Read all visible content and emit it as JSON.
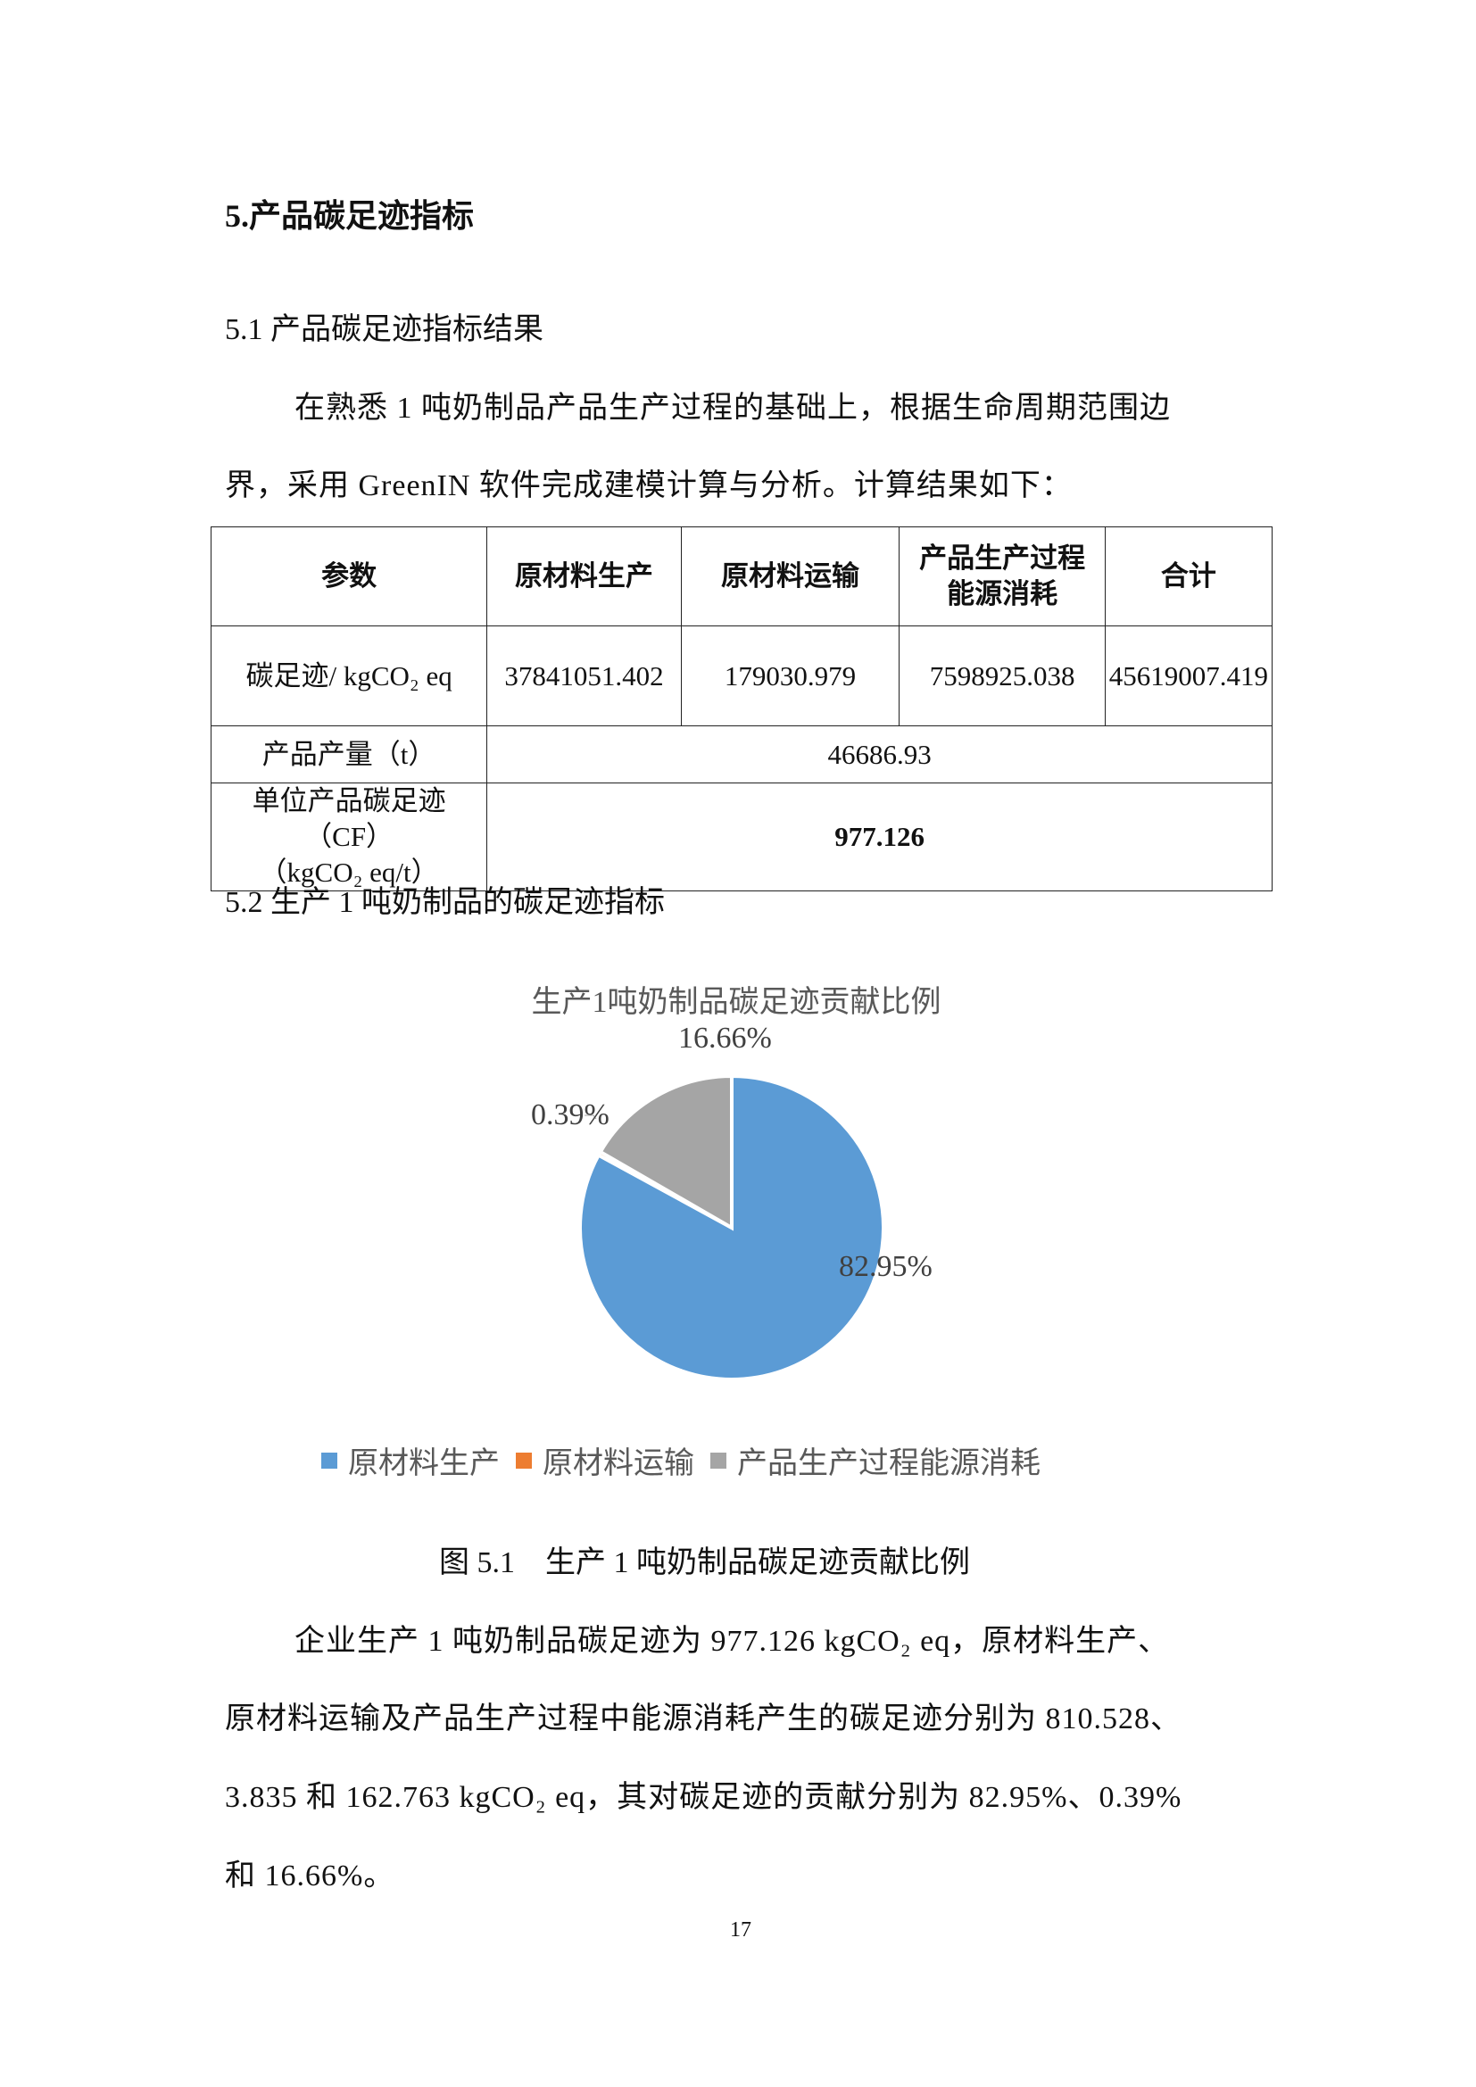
{
  "heading": "5.产品碳足迹指标",
  "section_5_1": "5.1 产品碳足迹指标结果",
  "intro_lines": [
    "在熟悉 1 吨奶制品产品生产过程的基础上，根据生命周期范围边",
    "界，采用 GreenIN 软件完成建模计算与分析。计算结果如下："
  ],
  "table": {
    "headers": [
      "参数",
      "原材料生产",
      "原材料运输",
      "产品生产过程能源消耗",
      "合计"
    ],
    "row_cf": {
      "label": "碳足迹/ kgCO₂ eq",
      "values": [
        "37841051.402",
        "179030.979",
        "7598925.038",
        "45619007.419"
      ]
    },
    "row_output": {
      "label": "产品产量（t）",
      "value": "46686.93"
    },
    "row_unit_cf": {
      "label_line1": "单位产品碳足迹（CF）",
      "label_line2": "（kgCO₂ eq/t）",
      "value": "977.126"
    }
  },
  "section_5_2": "5.2 生产 1 吨奶制品的碳足迹指标",
  "chart_data": {
    "type": "pie",
    "title": "生产1吨奶制品碳足迹贡献比例",
    "categories": [
      "原材料生产",
      "原材料运输",
      "产品生产过程能源消耗"
    ],
    "values": [
      82.95,
      0.39,
      16.66
    ],
    "labels": [
      "82.95%",
      "0.39%",
      "16.66%"
    ],
    "colors": [
      "#5B9BD5",
      "#ED7D31",
      "#A5A5A5"
    ],
    "legend": "bottom"
  },
  "caption": "图 5.1　生产 1 吨奶制品碳足迹贡献比例",
  "summary_lines": [
    "企业生产 1 吨奶制品碳足迹为 977.126 kgCO₂ eq，原材料生产、",
    "原材料运输及产品生产过程中能源消耗产生的碳足迹分别为 810.528、",
    "3.835 和 162.763 kgCO₂ eq，其对碳足迹的贡献分别为 82.95%、0.39%",
    "和 16.66%。"
  ],
  "page_number": "17"
}
